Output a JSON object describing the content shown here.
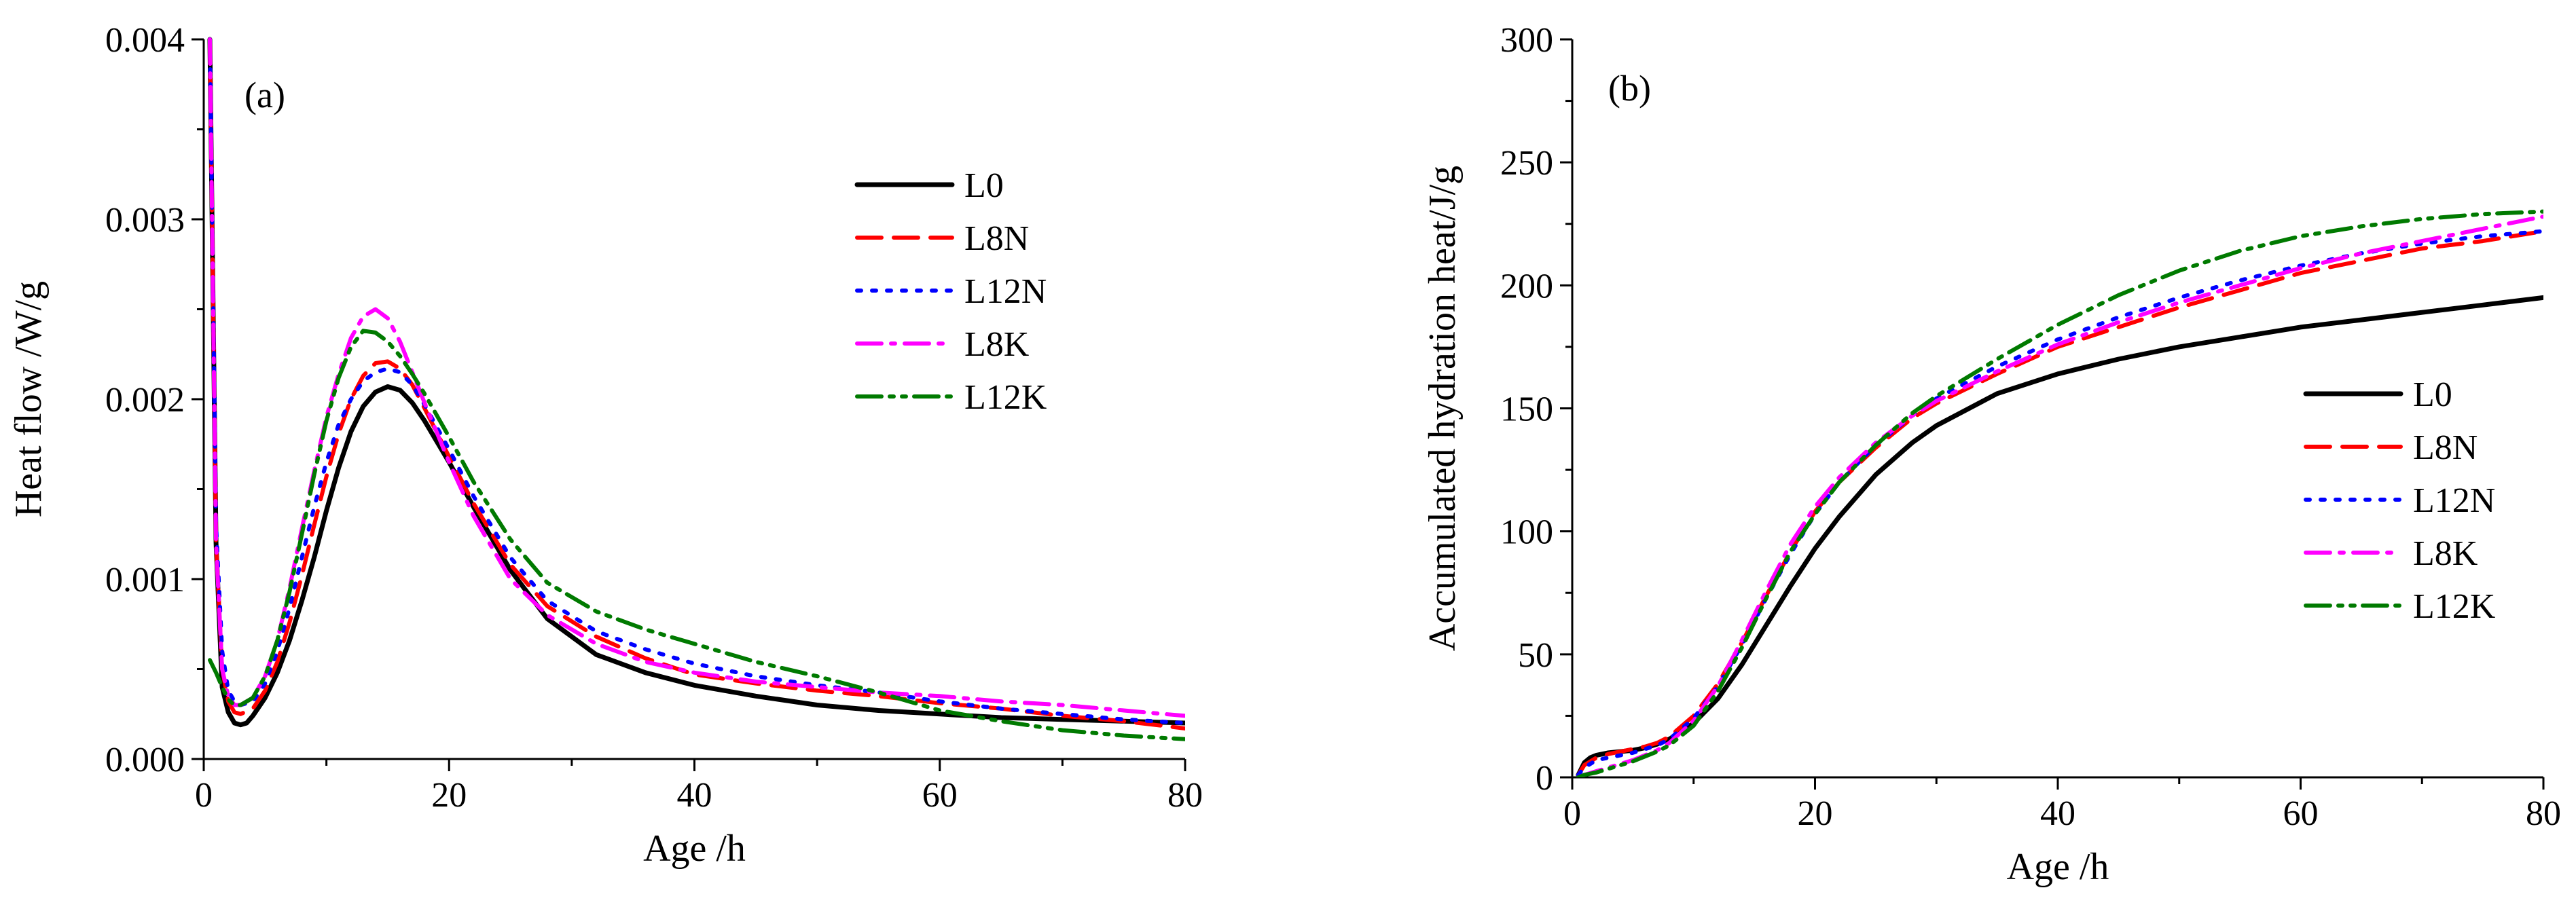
{
  "chart_data": [
    {
      "type": "line",
      "panel_label": "(a)",
      "xlabel": "Age /h",
      "ylabel": "Heat flow /W/g",
      "xlim": [
        0,
        80
      ],
      "ylim": [
        0,
        0.004
      ],
      "xticks": [
        0,
        20,
        40,
        60,
        80
      ],
      "xtick_labels": [
        "0",
        "20",
        "40",
        "60",
        "80"
      ],
      "yticks": [
        0,
        0.001,
        0.002,
        0.003,
        0.004
      ],
      "ytick_labels": [
        "0.000",
        "0.001",
        "0.002",
        "0.003",
        "0.004"
      ],
      "grid": false,
      "legend_position": "top-right",
      "series": [
        {
          "name": "L0",
          "color": "#000000",
          "dash": "solid",
          "x": [
            0.5,
            1,
            1.5,
            2,
            2.5,
            3,
            3.5,
            4,
            5,
            6,
            7,
            8,
            9,
            10,
            11,
            12,
            13,
            14,
            15,
            16,
            17,
            18,
            20,
            22,
            25,
            28,
            32,
            36,
            40,
            45,
            50,
            55,
            60,
            65,
            70,
            75,
            80
          ],
          "y": [
            0.004,
            0.0012,
            0.0004,
            0.00026,
            0.0002,
            0.00019,
            0.0002,
            0.00024,
            0.00034,
            0.00048,
            0.00066,
            0.00088,
            0.00112,
            0.00138,
            0.00162,
            0.00182,
            0.00196,
            0.00204,
            0.00207,
            0.00205,
            0.00198,
            0.00188,
            0.00165,
            0.0014,
            0.00105,
            0.00078,
            0.00058,
            0.00048,
            0.00041,
            0.00035,
            0.0003,
            0.00027,
            0.00025,
            0.00023,
            0.00022,
            0.00021,
            0.0002
          ]
        },
        {
          "name": "L8N",
          "color": "#ff0000",
          "dash": "dashed",
          "x": [
            0.5,
            1,
            1.5,
            2,
            2.5,
            3,
            4,
            5,
            6,
            7,
            8,
            9,
            10,
            11,
            12,
            13,
            14,
            15,
            16,
            17,
            18,
            20,
            22,
            25,
            28,
            32,
            36,
            40,
            45,
            50,
            55,
            60,
            65,
            70,
            75,
            80
          ],
          "y": [
            0.004,
            0.0012,
            0.0005,
            0.00032,
            0.00026,
            0.00025,
            0.00028,
            0.00038,
            0.00054,
            0.00076,
            0.00102,
            0.0013,
            0.00157,
            0.00181,
            0.002,
            0.00213,
            0.0022,
            0.00221,
            0.00217,
            0.00208,
            0.00195,
            0.00168,
            0.00142,
            0.00108,
            0.00085,
            0.00068,
            0.00056,
            0.00047,
            0.00042,
            0.00038,
            0.00035,
            0.00031,
            0.00028,
            0.00024,
            0.00021,
            0.00017
          ]
        },
        {
          "name": "L12N",
          "color": "#0000ff",
          "dash": "dotted",
          "x": [
            0.5,
            1,
            1.5,
            2,
            2.5,
            3,
            4,
            5,
            6,
            7,
            8,
            9,
            10,
            11,
            12,
            13,
            14,
            15,
            16,
            17,
            18,
            20,
            22,
            25,
            28,
            32,
            36,
            40,
            45,
            50,
            55,
            60,
            65,
            70,
            75,
            80
          ],
          "y": [
            0.004,
            0.0013,
            0.0006,
            0.00038,
            0.00032,
            0.0003,
            0.00032,
            0.00042,
            0.0006,
            0.00084,
            0.00112,
            0.0014,
            0.00165,
            0.00186,
            0.002,
            0.0021,
            0.00215,
            0.00217,
            0.00215,
            0.00208,
            0.00197,
            0.00172,
            0.00146,
            0.00112,
            0.00088,
            0.00071,
            0.00061,
            0.00053,
            0.00046,
            0.00041,
            0.00037,
            0.00032,
            0.00028,
            0.00025,
            0.00022,
            0.0002
          ]
        },
        {
          "name": "L8K",
          "color": "#ff00ff",
          "dash": "dashdot",
          "x": [
            0.5,
            1,
            1.5,
            2,
            2.5,
            3,
            4,
            5,
            6,
            7,
            8,
            9,
            10,
            11,
            12,
            13,
            14,
            15,
            16,
            17,
            18,
            20,
            22,
            25,
            28,
            32,
            36,
            40,
            45,
            50,
            55,
            60,
            65,
            70,
            75,
            80
          ],
          "y": [
            0.004,
            0.0012,
            0.0005,
            0.00035,
            0.0003,
            0.0003,
            0.00034,
            0.00046,
            0.00066,
            0.00095,
            0.00128,
            0.0016,
            0.0019,
            0.00214,
            0.00234,
            0.00246,
            0.0025,
            0.00245,
            0.00232,
            0.00215,
            0.00198,
            0.00165,
            0.00135,
            0.001,
            0.0008,
            0.00064,
            0.00054,
            0.00048,
            0.00043,
            0.0004,
            0.00037,
            0.00035,
            0.00032,
            0.0003,
            0.00027,
            0.00024
          ]
        },
        {
          "name": "L12K",
          "color": "#007a00",
          "dash": "dashdotdot",
          "x": [
            0.5,
            1,
            1.5,
            2,
            2.5,
            3,
            4,
            5,
            6,
            7,
            8,
            9,
            10,
            11,
            12,
            13,
            14,
            15,
            16,
            17,
            18,
            20,
            22,
            25,
            28,
            32,
            36,
            40,
            45,
            50,
            55,
            60,
            65,
            70,
            75,
            80
          ],
          "y": [
            0.00055,
            0.00048,
            0.0004,
            0.00033,
            0.0003,
            0.0003,
            0.00034,
            0.00046,
            0.00066,
            0.00093,
            0.00125,
            0.00158,
            0.00188,
            0.00212,
            0.00229,
            0.00238,
            0.00237,
            0.00232,
            0.00224,
            0.00214,
            0.00203,
            0.00179,
            0.00154,
            0.00122,
            0.00098,
            0.00082,
            0.00072,
            0.00064,
            0.00054,
            0.00046,
            0.00037,
            0.00027,
            0.00021,
            0.00016,
            0.00013,
            0.00011
          ]
        }
      ]
    },
    {
      "type": "line",
      "panel_label": "(b)",
      "xlabel": "Age /h",
      "ylabel": "Accumulated hydration heat/J/g",
      "xlim": [
        0,
        80
      ],
      "ylim": [
        0,
        300
      ],
      "xticks": [
        0,
        20,
        40,
        60,
        80
      ],
      "xtick_labels": [
        "0",
        "20",
        "40",
        "60",
        "80"
      ],
      "yticks": [
        0,
        50,
        100,
        150,
        200,
        250,
        300
      ],
      "ytick_labels": [
        "0",
        "50",
        "100",
        "150",
        "200",
        "250",
        "300"
      ],
      "grid": false,
      "legend_position": "right",
      "series": [
        {
          "name": "L0",
          "color": "#000000",
          "dash": "solid",
          "x": [
            0.5,
            1,
            1.5,
            2,
            3,
            4,
            5,
            6,
            7,
            8,
            10,
            12,
            14,
            16,
            18,
            20,
            22,
            25,
            28,
            30,
            35,
            40,
            45,
            50,
            55,
            60,
            65,
            70,
            75,
            80
          ],
          "y": [
            1,
            6,
            8,
            9,
            10,
            10.5,
            11,
            12,
            13.5,
            15.5,
            22,
            32,
            46,
            62,
            78,
            93,
            106,
            123,
            136,
            143,
            156,
            164,
            170,
            175,
            179,
            183,
            186,
            189,
            192,
            195
          ]
        },
        {
          "name": "L8N",
          "color": "#ff0000",
          "dash": "dashed",
          "x": [
            0.5,
            1,
            2,
            3,
            4,
            5,
            6,
            7,
            8,
            10,
            12,
            14,
            16,
            18,
            20,
            22,
            25,
            28,
            30,
            35,
            40,
            45,
            50,
            55,
            60,
            65,
            70,
            75,
            80
          ],
          "y": [
            1,
            5,
            8,
            9.5,
            10.5,
            11.5,
            12.5,
            14,
            16.5,
            25,
            38,
            55,
            74,
            92,
            108,
            120,
            134,
            146,
            152,
            164,
            175,
            183,
            191,
            198,
            205,
            210,
            215,
            218,
            222
          ]
        },
        {
          "name": "L12N",
          "color": "#0000ff",
          "dash": "dotted",
          "x": [
            0.5,
            1,
            2,
            3,
            4,
            5,
            6,
            7,
            8,
            10,
            12,
            14,
            16,
            18,
            20,
            22,
            25,
            28,
            30,
            35,
            40,
            45,
            50,
            55,
            60,
            65,
            70,
            75,
            80
          ],
          "y": [
            1,
            4,
            7,
            8,
            9,
            10,
            11.5,
            13,
            15.5,
            24,
            37,
            54,
            73,
            91,
            107,
            120,
            135,
            147,
            154,
            167,
            178,
            187,
            195,
            202,
            208,
            213,
            217,
            220,
            222
          ]
        },
        {
          "name": "L8K",
          "color": "#ff00ff",
          "dash": "dashdot",
          "x": [
            0.5,
            1,
            2,
            3,
            4,
            5,
            6,
            7,
            8,
            10,
            12,
            14,
            16,
            18,
            20,
            22,
            25,
            28,
            30,
            35,
            40,
            45,
            50,
            55,
            60,
            65,
            70,
            75,
            80
          ],
          "y": [
            0,
            1,
            2.5,
            4,
            5.5,
            7,
            9,
            11,
            14,
            23,
            37,
            56,
            76,
            95,
            110,
            122,
            136,
            147,
            153,
            165,
            176,
            185,
            193,
            200,
            207,
            213,
            218,
            223,
            228
          ]
        },
        {
          "name": "L12K",
          "color": "#007a00",
          "dash": "dashdotdot",
          "x": [
            0.5,
            1,
            2,
            3,
            4,
            5,
            6,
            7,
            8,
            10,
            12,
            14,
            16,
            18,
            20,
            22,
            25,
            28,
            30,
            35,
            40,
            45,
            50,
            55,
            60,
            65,
            70,
            75,
            80
          ],
          "y": [
            0,
            1,
            2,
            3.5,
            5,
            6.5,
            8.5,
            10.5,
            13,
            21,
            35,
            53,
            73,
            92,
            107,
            120,
            135,
            148,
            155,
            170,
            184,
            196,
            206,
            214,
            220,
            224,
            227,
            229,
            230
          ]
        }
      ]
    }
  ]
}
